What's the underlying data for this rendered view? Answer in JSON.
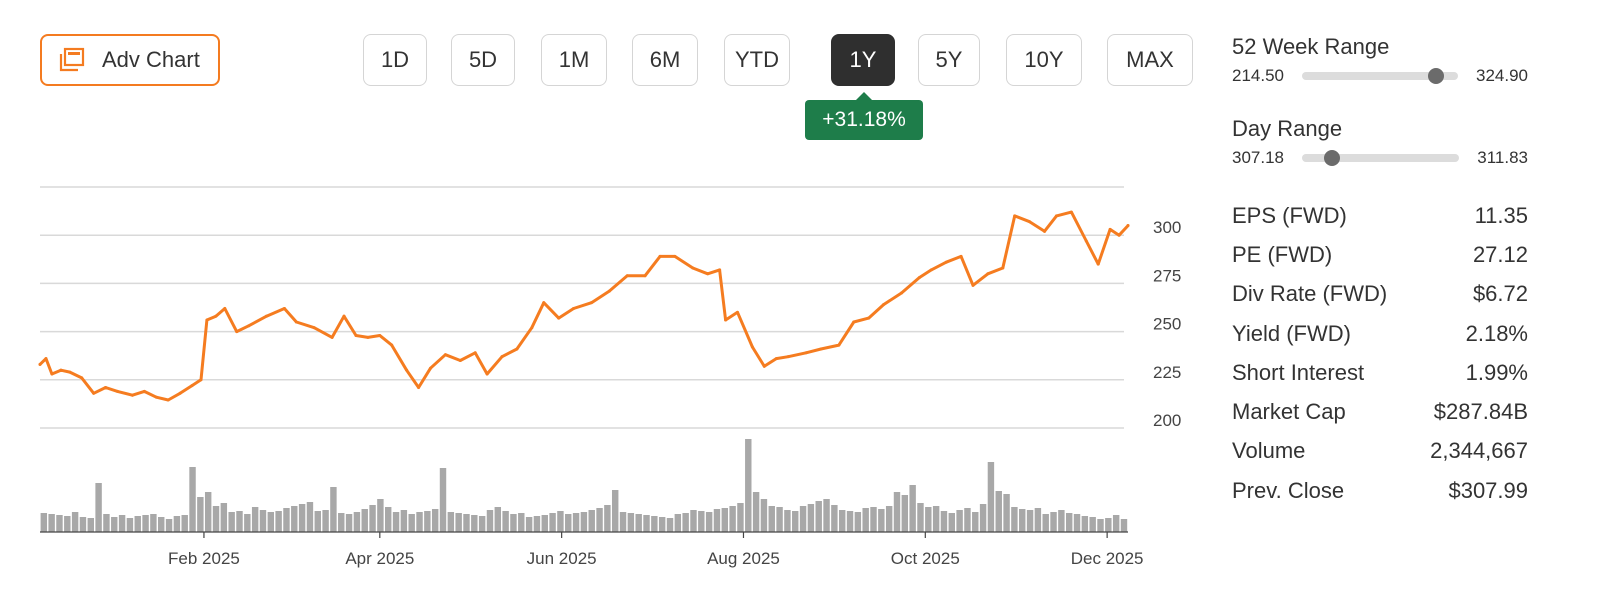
{
  "adv_chart": {
    "label": "Adv Chart",
    "icon": "chart-windows-icon"
  },
  "ranges": [
    {
      "label": "1D",
      "active": false
    },
    {
      "label": "5D",
      "active": false
    },
    {
      "label": "1M",
      "active": false
    },
    {
      "label": "6M",
      "active": false
    },
    {
      "label": "YTD",
      "active": false
    },
    {
      "label": "1Y",
      "active": true
    },
    {
      "label": "5Y",
      "active": false
    },
    {
      "label": "10Y",
      "active": false
    },
    {
      "label": "MAX",
      "active": false
    }
  ],
  "change_badge": {
    "text": "+31.18%",
    "color": "#1e7d4a"
  },
  "week52": {
    "title": "52 Week Range",
    "low": "214.50",
    "high": "324.90",
    "marker_fraction": 0.86
  },
  "day_range": {
    "title": "Day Range",
    "low": "307.18",
    "high": "311.83",
    "marker_fraction": 0.19
  },
  "stats": [
    {
      "label": "EPS (FWD)",
      "value": "11.35"
    },
    {
      "label": "PE (FWD)",
      "value": "27.12"
    },
    {
      "label": "Div Rate (FWD)",
      "value": "$6.72"
    },
    {
      "label": "Yield (FWD)",
      "value": "2.18%"
    },
    {
      "label": "Short Interest",
      "value": "1.99%"
    },
    {
      "label": "Market Cap",
      "value": "$287.84B"
    },
    {
      "label": "Volume",
      "value": "2,344,667"
    },
    {
      "label": "Prev. Close",
      "value": "$307.99"
    }
  ],
  "chart_data": {
    "type": "line",
    "line_color": "#f57c20",
    "volume_color": "#a8a8a8",
    "grid": true,
    "ylim": [
      200,
      325
    ],
    "y_ticks": [
      200,
      225,
      250,
      275,
      300
    ],
    "x_ticks": [
      {
        "label": "Feb 2025",
        "date": "2025-02-01"
      },
      {
        "label": "Apr 2025",
        "date": "2025-04-01"
      },
      {
        "label": "Jun 2025",
        "date": "2025-06-01"
      },
      {
        "label": "Aug 2025",
        "date": "2025-08-01"
      },
      {
        "label": "Oct 2025",
        "date": "2025-10-01"
      },
      {
        "label": "Dec 2025",
        "date": "2025-12-01"
      }
    ],
    "x_range": [
      "2024-12-08",
      "2025-12-08"
    ],
    "price": [
      [
        "2024-12-08",
        233
      ],
      [
        "2024-12-10",
        236
      ],
      [
        "2024-12-12",
        228
      ],
      [
        "2024-12-15",
        230
      ],
      [
        "2024-12-18",
        229
      ],
      [
        "2024-12-22",
        226
      ],
      [
        "2024-12-26",
        218
      ],
      [
        "2024-12-30",
        221
      ],
      [
        "2025-01-03",
        219
      ],
      [
        "2025-01-08",
        217
      ],
      [
        "2025-01-12",
        219
      ],
      [
        "2025-01-16",
        216
      ],
      [
        "2025-01-20",
        214.5
      ],
      [
        "2025-01-24",
        218
      ],
      [
        "2025-01-28",
        222
      ],
      [
        "2025-01-31",
        225
      ],
      [
        "2025-02-02",
        256
      ],
      [
        "2025-02-05",
        258
      ],
      [
        "2025-02-08",
        262
      ],
      [
        "2025-02-12",
        250
      ],
      [
        "2025-02-16",
        253
      ],
      [
        "2025-02-22",
        258
      ],
      [
        "2025-02-28",
        262
      ],
      [
        "2025-03-04",
        255
      ],
      [
        "2025-03-10",
        252
      ],
      [
        "2025-03-16",
        247
      ],
      [
        "2025-03-20",
        258
      ],
      [
        "2025-03-24",
        248
      ],
      [
        "2025-03-28",
        247
      ],
      [
        "2025-04-01",
        248
      ],
      [
        "2025-04-05",
        243
      ],
      [
        "2025-04-10",
        230
      ],
      [
        "2025-04-14",
        221
      ],
      [
        "2025-04-18",
        231
      ],
      [
        "2025-04-23",
        238
      ],
      [
        "2025-04-28",
        235
      ],
      [
        "2025-05-03",
        239
      ],
      [
        "2025-05-07",
        228
      ],
      [
        "2025-05-12",
        237
      ],
      [
        "2025-05-17",
        241
      ],
      [
        "2025-05-22",
        252
      ],
      [
        "2025-05-26",
        265
      ],
      [
        "2025-05-31",
        257
      ],
      [
        "2025-06-05",
        262
      ],
      [
        "2025-06-11",
        265
      ],
      [
        "2025-06-17",
        271
      ],
      [
        "2025-06-23",
        279
      ],
      [
        "2025-06-29",
        279
      ],
      [
        "2025-07-04",
        289
      ],
      [
        "2025-07-09",
        289
      ],
      [
        "2025-07-15",
        283
      ],
      [
        "2025-07-20",
        280
      ],
      [
        "2025-07-24",
        282
      ],
      [
        "2025-07-26",
        256
      ],
      [
        "2025-07-30",
        260
      ],
      [
        "2025-08-04",
        242
      ],
      [
        "2025-08-08",
        232
      ],
      [
        "2025-08-12",
        236
      ],
      [
        "2025-08-16",
        237
      ],
      [
        "2025-08-22",
        239
      ],
      [
        "2025-08-27",
        241
      ],
      [
        "2025-09-02",
        243
      ],
      [
        "2025-09-07",
        255
      ],
      [
        "2025-09-12",
        257
      ],
      [
        "2025-09-17",
        264
      ],
      [
        "2025-09-23",
        270
      ],
      [
        "2025-09-29",
        278
      ],
      [
        "2025-10-03",
        282
      ],
      [
        "2025-10-08",
        286
      ],
      [
        "2025-10-13",
        289
      ],
      [
        "2025-10-17",
        274
      ],
      [
        "2025-10-22",
        280
      ],
      [
        "2025-10-27",
        283
      ],
      [
        "2025-10-31",
        310
      ],
      [
        "2025-11-05",
        307
      ],
      [
        "2025-11-10",
        302
      ],
      [
        "2025-11-14",
        310
      ],
      [
        "2025-11-19",
        312
      ],
      [
        "2025-11-24",
        297
      ],
      [
        "2025-11-28",
        285
      ],
      [
        "2025-12-02",
        303
      ],
      [
        "2025-12-05",
        300
      ],
      [
        "2025-12-08",
        305
      ]
    ],
    "volume_scale": [
      0,
      100
    ],
    "volume": [
      19,
      18,
      17,
      16,
      20,
      15,
      14,
      49,
      18,
      15,
      17,
      14,
      16,
      17,
      18,
      15,
      13,
      16,
      17,
      65,
      35,
      40,
      26,
      29,
      20,
      21,
      18,
      25,
      22,
      20,
      21,
      24,
      26,
      28,
      30,
      21,
      22,
      45,
      19,
      18,
      20,
      23,
      27,
      33,
      25,
      20,
      22,
      18,
      20,
      21,
      23,
      64,
      20,
      19,
      18,
      17,
      16,
      22,
      25,
      21,
      18,
      19,
      15,
      16,
      17,
      19,
      21,
      18,
      19,
      20,
      22,
      24,
      27,
      42,
      20,
      19,
      18,
      17,
      16,
      15,
      14,
      18,
      19,
      22,
      21,
      20,
      23,
      24,
      26,
      29,
      93,
      40,
      33,
      26,
      25,
      22,
      21,
      26,
      28,
      31,
      33,
      27,
      22,
      21,
      20,
      24,
      25,
      23,
      26,
      40,
      37,
      47,
      29,
      25,
      26,
      21,
      19,
      22,
      24,
      20,
      28,
      70,
      41,
      38,
      25,
      23,
      22,
      24,
      18,
      20,
      22,
      19,
      18,
      16,
      15,
      13,
      14,
      17,
      13
    ]
  }
}
